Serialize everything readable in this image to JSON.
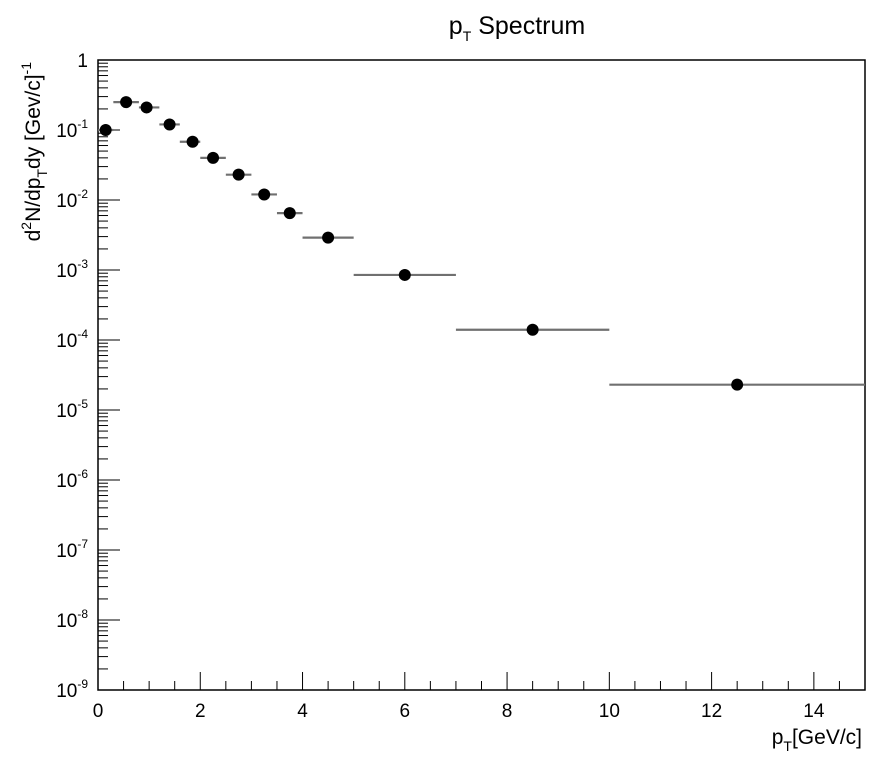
{
  "chart_data": {
    "type": "scatter",
    "title": {
      "main": "p",
      "sub": "T",
      "rest": " Spectrum"
    },
    "xlabel": {
      "main": "p",
      "sub": "T",
      "rest": "[GeV/c]"
    },
    "ylabel": {
      "a": "d",
      "a_sup": "2",
      "b": "N/dp",
      "b_sub": "T",
      "c": "dy [Gev/c]",
      "c_sup": "-1"
    },
    "xlim": [
      0,
      15
    ],
    "ylim": [
      1e-09,
      1
    ],
    "yscale": "log",
    "grid": false,
    "legend": "none",
    "marker_color": "#000000",
    "errorbar_color": "#707070",
    "xticks": [
      "0",
      "2",
      "4",
      "6",
      "8",
      "10",
      "12",
      "14"
    ],
    "yticks": [
      {
        "base": "1",
        "exp": ""
      },
      {
        "base": "10",
        "exp": "-1"
      },
      {
        "base": "10",
        "exp": "-2"
      },
      {
        "base": "10",
        "exp": "-3"
      },
      {
        "base": "10",
        "exp": "-4"
      },
      {
        "base": "10",
        "exp": "-5"
      },
      {
        "base": "10",
        "exp": "-6"
      },
      {
        "base": "10",
        "exp": "-7"
      },
      {
        "base": "10",
        "exp": "-8"
      },
      {
        "base": "10",
        "exp": "-9"
      }
    ],
    "points": [
      {
        "x": 0.15,
        "xlo": 0.0,
        "xhi": 0.3,
        "y": 0.1
      },
      {
        "x": 0.55,
        "xlo": 0.3,
        "xhi": 0.8,
        "y": 0.25
      },
      {
        "x": 0.95,
        "xlo": 0.8,
        "xhi": 1.2,
        "y": 0.21
      },
      {
        "x": 1.4,
        "xlo": 1.2,
        "xhi": 1.6,
        "y": 0.12
      },
      {
        "x": 1.85,
        "xlo": 1.6,
        "xhi": 2.0,
        "y": 0.068
      },
      {
        "x": 2.25,
        "xlo": 2.0,
        "xhi": 2.5,
        "y": 0.04
      },
      {
        "x": 2.75,
        "xlo": 2.5,
        "xhi": 3.0,
        "y": 0.023
      },
      {
        "x": 3.25,
        "xlo": 3.0,
        "xhi": 3.5,
        "y": 0.012
      },
      {
        "x": 3.75,
        "xlo": 3.5,
        "xhi": 4.0,
        "y": 0.0065
      },
      {
        "x": 4.5,
        "xlo": 4.0,
        "xhi": 5.0,
        "y": 0.0029
      },
      {
        "x": 6.0,
        "xlo": 5.0,
        "xhi": 7.0,
        "y": 0.00085
      },
      {
        "x": 8.5,
        "xlo": 7.0,
        "xhi": 10.0,
        "y": 0.00014
      },
      {
        "x": 12.5,
        "xlo": 10.0,
        "xhi": 15.0,
        "y": 2.3e-05
      }
    ]
  }
}
